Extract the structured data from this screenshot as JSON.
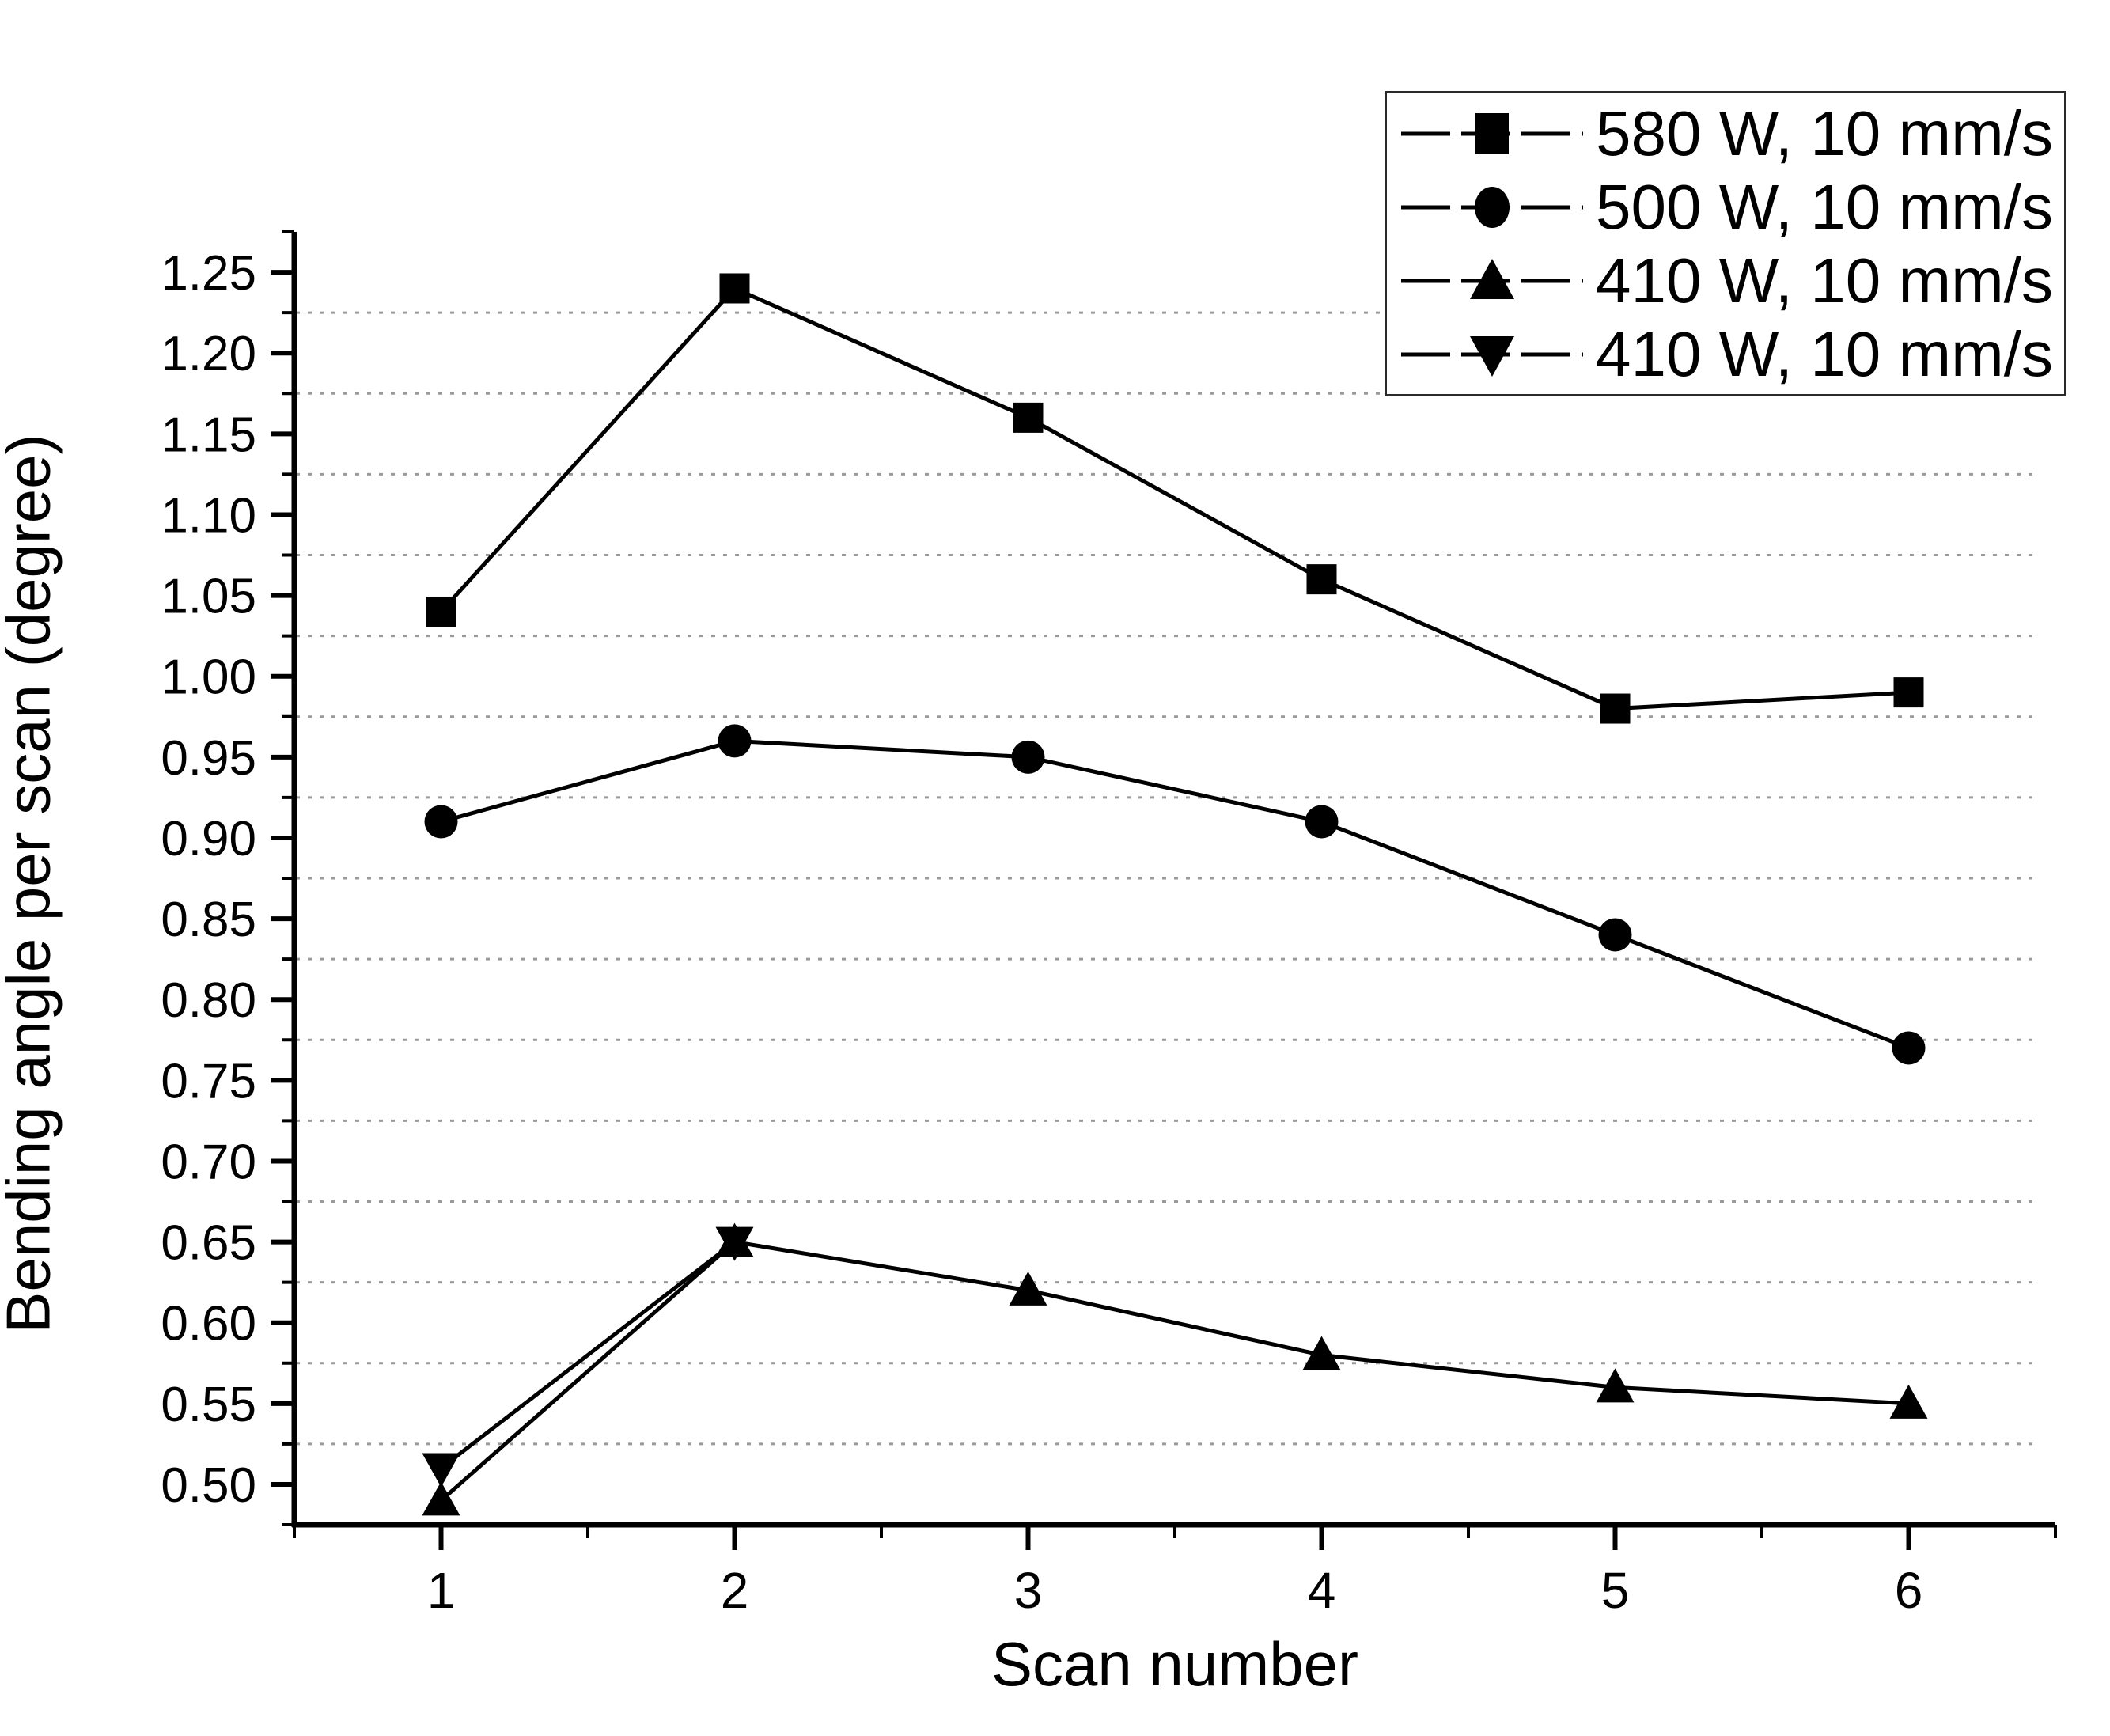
{
  "figure": {
    "xlabel": "Scan number",
    "ylabel": "Bending angle per scan (degree)"
  },
  "chart_data": {
    "type": "line",
    "title": "",
    "xlabel": "Scan number",
    "ylabel": "Bending angle per scan (degree)",
    "xlim": [
      0.5,
      6.5
    ],
    "ylim": [
      0.475,
      1.275
    ],
    "x_major_ticks": [
      1,
      2,
      3,
      4,
      5,
      6
    ],
    "x_tick_labels": [
      "1",
      "2",
      "3",
      "4",
      "5",
      "6"
    ],
    "x_minor_ticks": [
      0.5,
      1.5,
      2.5,
      3.5,
      4.5,
      5.5,
      6.5
    ],
    "y_major_ticks": [
      0.5,
      0.55,
      0.6,
      0.65,
      0.7,
      0.75,
      0.8,
      0.85,
      0.9,
      0.95,
      1.0,
      1.05,
      1.1,
      1.15,
      1.2,
      1.25
    ],
    "y_tick_labels": [
      "0.50",
      "0.55",
      "0.60",
      "0.65",
      "0.70",
      "0.75",
      "0.80",
      "0.85",
      "0.90",
      "0.95",
      "1.00",
      "1.05",
      "1.10",
      "1.15",
      "1.20",
      "1.25"
    ],
    "y_minor_ticks": [
      0.475,
      0.525,
      0.575,
      0.625,
      0.675,
      0.725,
      0.775,
      0.825,
      0.875,
      0.925,
      0.975,
      1.025,
      1.075,
      1.125,
      1.175,
      1.225,
      1.275
    ],
    "gridline_y_values": [
      0.525,
      0.575,
      0.625,
      0.675,
      0.725,
      0.775,
      0.825,
      0.875,
      0.925,
      0.975,
      1.025,
      1.075,
      1.125,
      1.175,
      1.225
    ],
    "grid_style": "dotted-horizontal",
    "legend_position": "top-right",
    "series": [
      {
        "name": "580 W, 10 mm/s",
        "marker": "square",
        "x": [
          1,
          2,
          3,
          4,
          5,
          6
        ],
        "values": [
          1.04,
          1.24,
          1.16,
          1.06,
          0.98,
          0.99
        ]
      },
      {
        "name": "500 W, 10 mm/s",
        "marker": "circle",
        "x": [
          1,
          2,
          3,
          4,
          5,
          6
        ],
        "values": [
          0.91,
          0.96,
          0.95,
          0.91,
          0.84,
          0.77
        ]
      },
      {
        "name": "410 W, 10 mm/s",
        "marker": "triangle-up",
        "x": [
          1,
          2,
          3,
          4,
          5,
          6
        ],
        "values": [
          0.49,
          0.65,
          0.62,
          0.58,
          0.56,
          0.55
        ]
      },
      {
        "name": "410 W, 10 mm/s",
        "marker": "triangle-down",
        "x": [
          1,
          2
        ],
        "values": [
          0.51,
          0.65
        ]
      }
    ],
    "colors": {
      "series": "#000000",
      "grid": "#9a9a9a",
      "axis": "#000000",
      "background": "#ffffff"
    }
  }
}
